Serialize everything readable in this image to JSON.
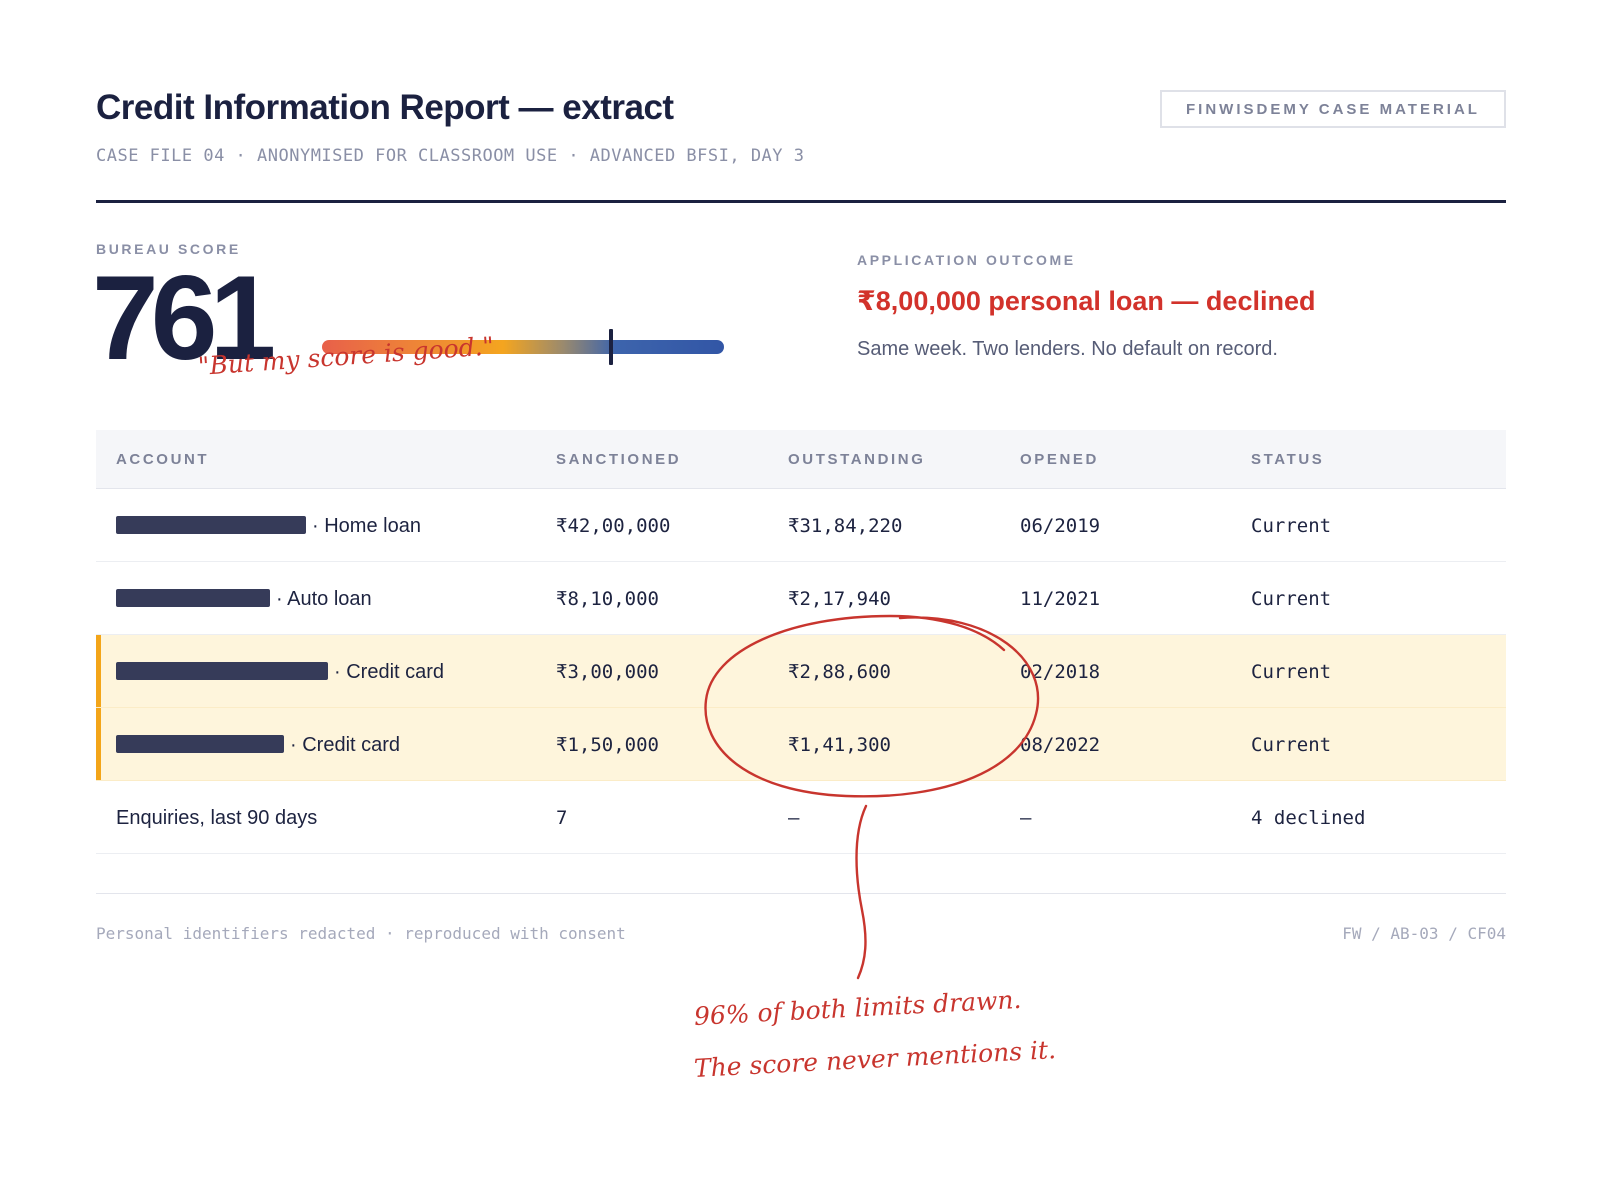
{
  "header": {
    "title": "Credit Information Report — extract",
    "subtitle": "CASE FILE 04 · ANONYMISED FOR CLASSROOM USE · ADVANCED BFSI, DAY 3",
    "badge": "FINWISDEMY CASE MATERIAL"
  },
  "score": {
    "label": "BUREAU SCORE",
    "value": "761",
    "bar_level": 0.72,
    "handwritten_quote": "\"But my score is good.\""
  },
  "outcome": {
    "label": "APPLICATION OUTCOME",
    "headline": "₹8,00,000 personal loan — declined",
    "detail": "Same week. Two lenders. No default on record."
  },
  "table": {
    "headers": [
      "ACCOUNT",
      "SANCTIONED",
      "OUTSTANDING",
      "OPENED",
      "STATUS"
    ],
    "rows": [
      {
        "account": "· Home loan",
        "sanctioned": "₹42,00,000",
        "outstanding": "₹31,84,220",
        "opened": "06/2019",
        "status": "Current"
      },
      {
        "account": "· Auto loan",
        "sanctioned": "₹8,10,000",
        "outstanding": "₹2,17,940",
        "opened": "11/2021",
        "status": "Current"
      },
      {
        "account": "· Credit card",
        "sanctioned": "₹3,00,000",
        "outstanding": "₹2,88,600",
        "opened": "02/2018",
        "status": "Current"
      },
      {
        "account": "· Credit card",
        "sanctioned": "₹1,50,000",
        "outstanding": "₹1,41,300",
        "opened": "08/2022",
        "status": "Current"
      },
      {
        "account": "Enquiries, last 90 days",
        "sanctioned": "7",
        "outstanding": "—",
        "opened": "—",
        "status": "4 declined"
      }
    ]
  },
  "footer": {
    "left": "Personal identifiers redacted · reproduced with consent",
    "right": "FW / AB-03 / CF04"
  },
  "annotation": {
    "line1": "96% of both limits drawn.",
    "line2": "The score never mentions it."
  },
  "colors": {
    "ink": "#1b2140",
    "accent_red": "#d2322b",
    "highlight": "#fef5dc",
    "highlight_bar": "#f3a519",
    "redaction": "#363b59"
  }
}
